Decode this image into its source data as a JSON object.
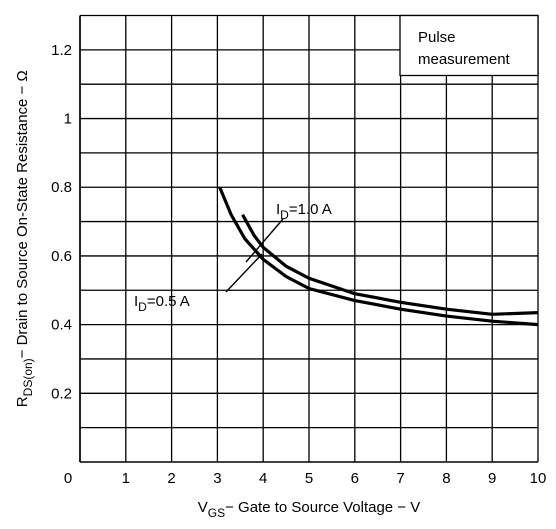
{
  "chart_data": {
    "type": "line",
    "xlabel": [
      "V",
      "GS",
      "− Gate to Source Voltage − V"
    ],
    "ylabel": [
      "R",
      "DS(on)",
      "− Drain to Source On-State Resistance − Ω"
    ],
    "xlim": [
      0,
      10
    ],
    "xticks": [
      0,
      1,
      2,
      3,
      4,
      5,
      6,
      7,
      8,
      9,
      10
    ],
    "ylim": [
      0,
      1.3
    ],
    "yticks": [
      0.2,
      0.4,
      0.6,
      0.8,
      1.0,
      1.2
    ],
    "yminor_ticks": [
      0.1,
      0.3,
      0.5,
      0.7,
      0.9,
      1.1,
      1.3
    ],
    "grid": true,
    "legend_box": [
      "Pulse",
      "measurement"
    ],
    "series": [
      {
        "name": [
          "I",
          "D",
          "=0.5 A"
        ],
        "color": "#000000",
        "x": [
          3.05,
          3.3,
          3.6,
          4,
          4.5,
          5,
          6,
          7,
          8,
          9,
          10
        ],
        "values": [
          0.8,
          0.72,
          0.65,
          0.59,
          0.54,
          0.505,
          0.47,
          0.445,
          0.425,
          0.41,
          0.4
        ]
      },
      {
        "name": [
          "I",
          "D",
          "=1.0 A"
        ],
        "color": "#000000",
        "x": [
          3.55,
          3.8,
          4,
          4.5,
          5,
          6,
          7,
          8,
          9,
          10
        ],
        "values": [
          0.72,
          0.66,
          0.625,
          0.57,
          0.535,
          0.49,
          0.465,
          0.445,
          0.43,
          0.435
        ]
      }
    ]
  }
}
